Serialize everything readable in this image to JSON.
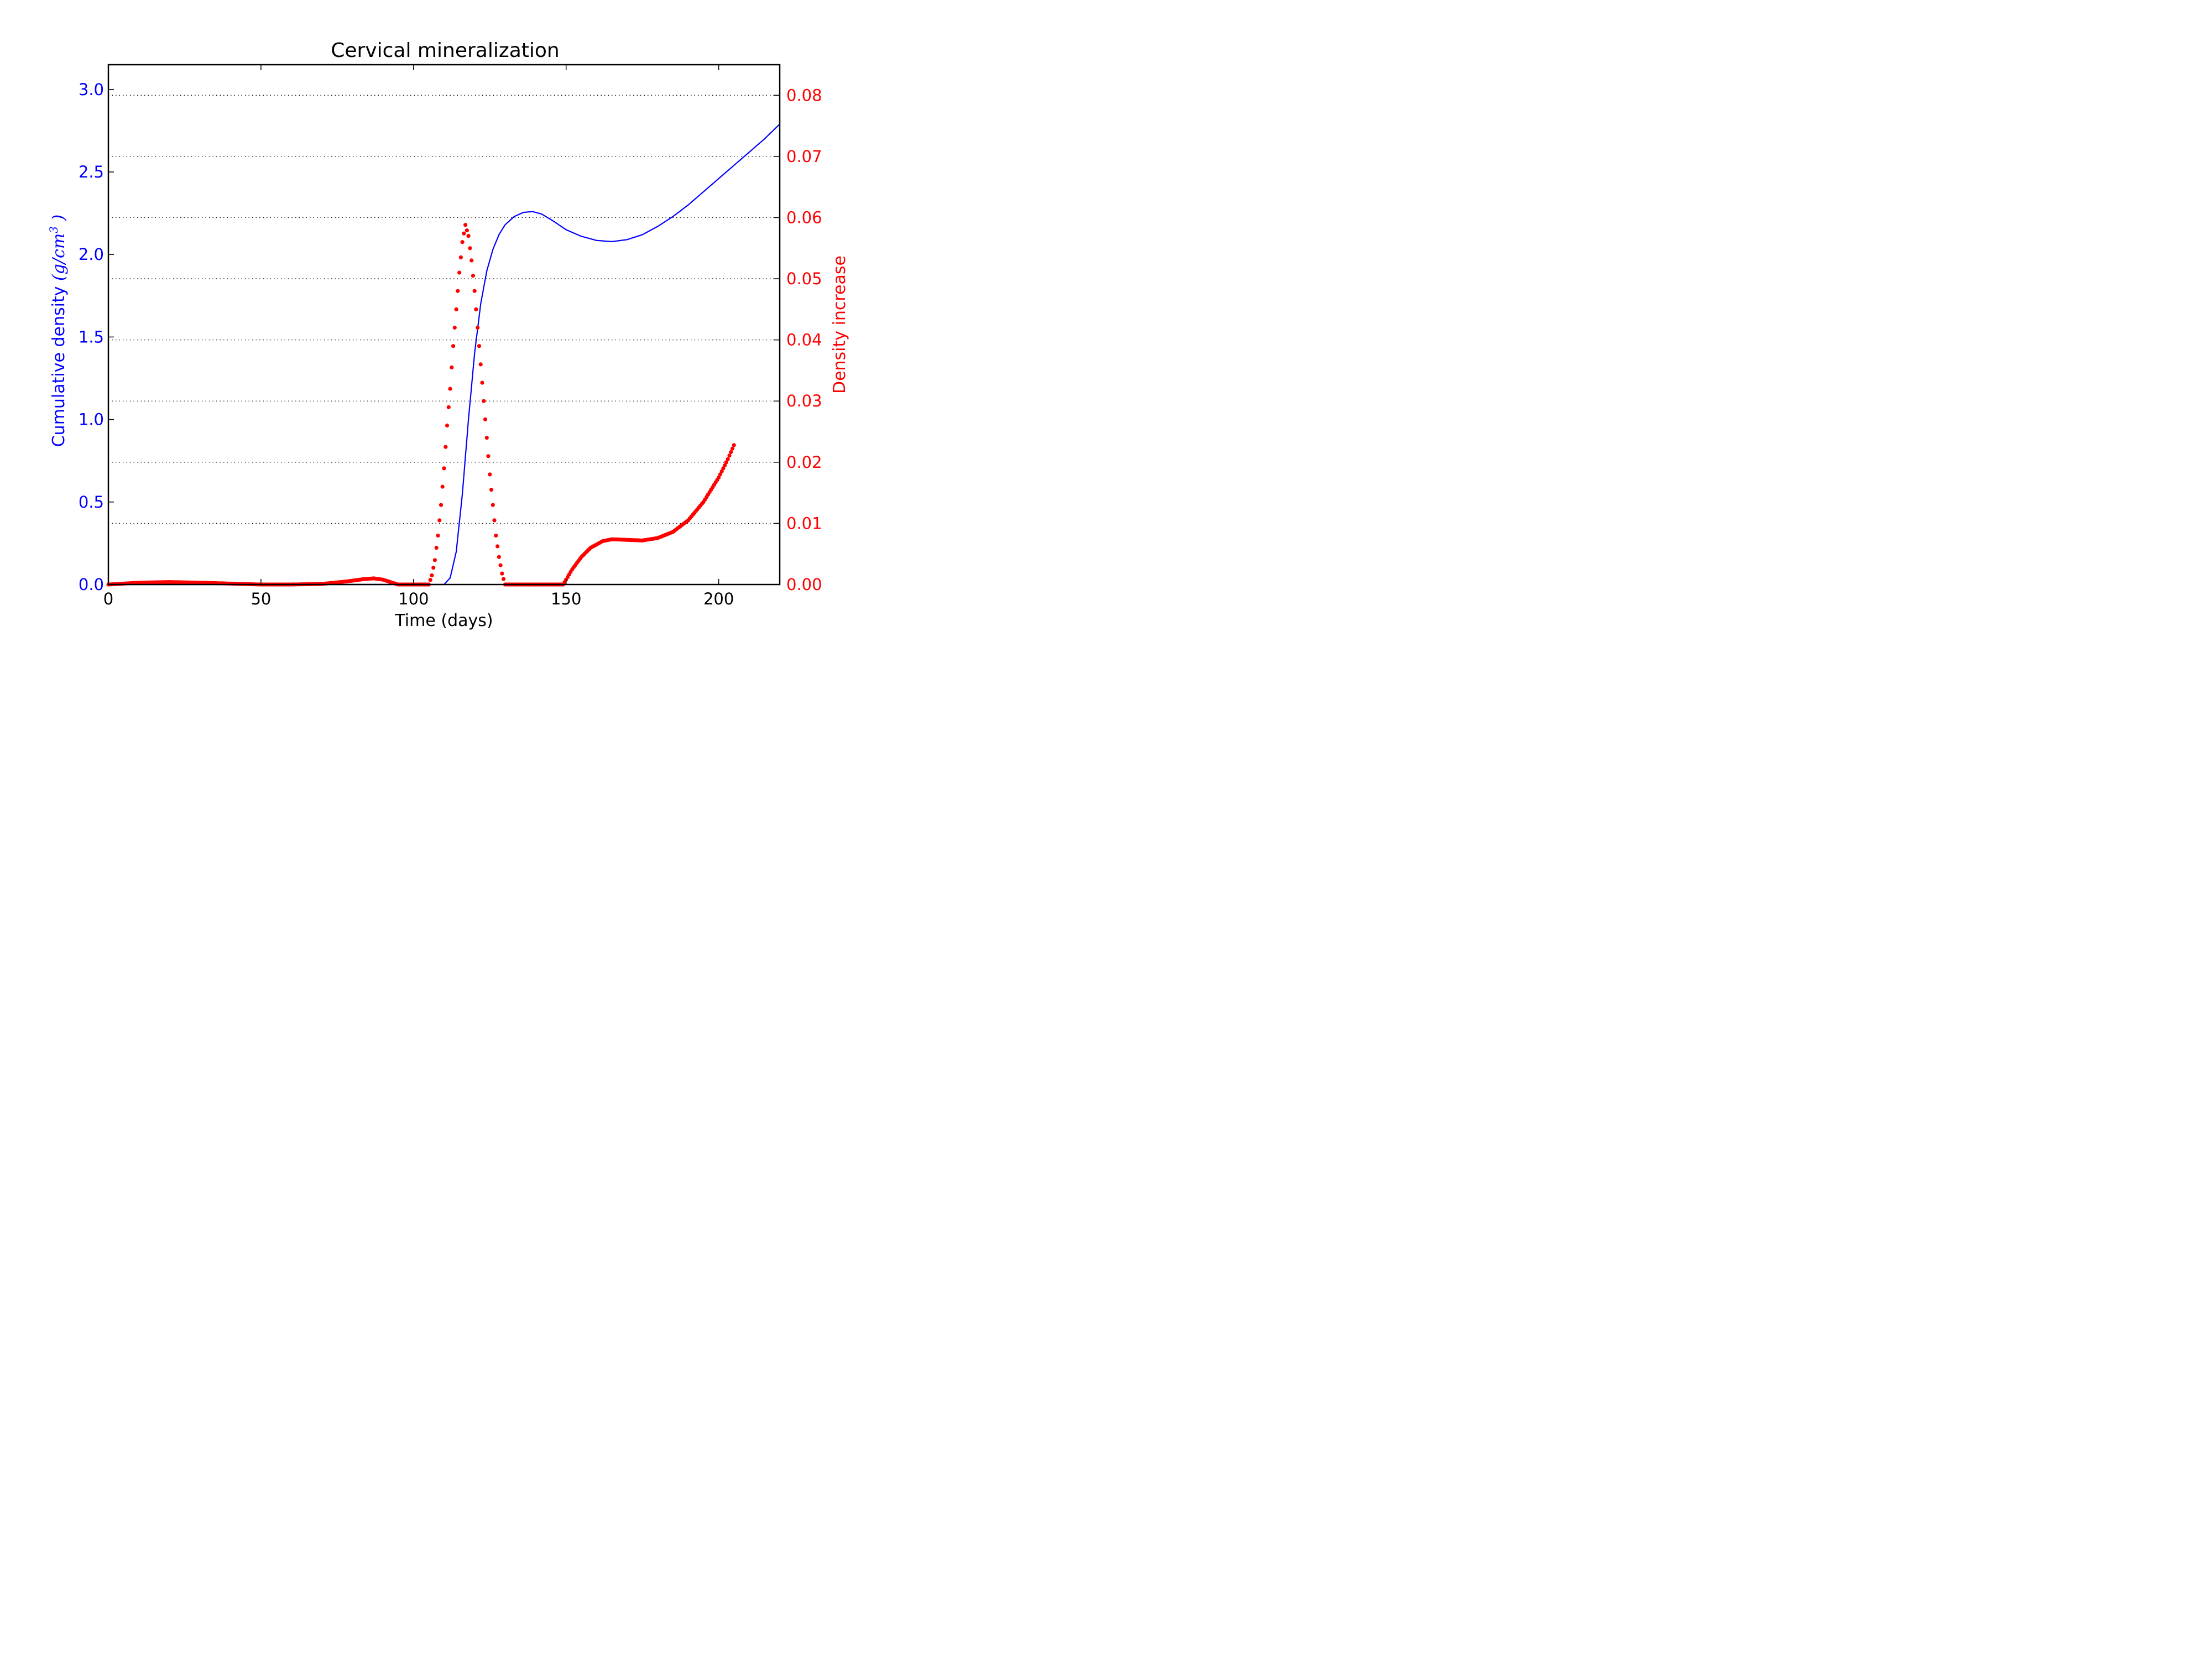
{
  "chart_data": {
    "type": "line",
    "title": "Cervical mineralization",
    "xlabel": "Time (days)",
    "xlim": [
      0,
      220
    ],
    "x_ticks": [
      0,
      50,
      100,
      150,
      200
    ],
    "y_left": {
      "label_text": "Cumulative density ",
      "label_units": "(g/cm",
      "label_exp": "3",
      "label_close": " )",
      "lim": [
        0,
        3.15
      ],
      "ticks": [
        0.0,
        0.5,
        1.0,
        1.5,
        2.0,
        2.5,
        3.0
      ],
      "color": "#0000ff"
    },
    "y_right": {
      "label": "Density increase",
      "lim": [
        0,
        0.085
      ],
      "ticks": [
        0.0,
        0.01,
        0.02,
        0.03,
        0.04,
        0.05,
        0.06,
        0.07,
        0.08
      ],
      "color": "#ff0000"
    },
    "grid": "right-axis horizontal dotted",
    "series": [
      {
        "axis": "left",
        "style": "line",
        "color": "#0000ff",
        "points": [
          [
            0,
            0
          ],
          [
            105,
            0
          ],
          [
            110,
            0
          ],
          [
            112,
            0.04
          ],
          [
            114,
            0.2
          ],
          [
            116,
            0.55
          ],
          [
            118,
            1.0
          ],
          [
            120,
            1.4
          ],
          [
            122,
            1.7
          ],
          [
            124,
            1.9
          ],
          [
            126,
            2.03
          ],
          [
            128,
            2.12
          ],
          [
            130,
            2.18
          ],
          [
            133,
            2.23
          ],
          [
            136,
            2.255
          ],
          [
            139,
            2.26
          ],
          [
            142,
            2.245
          ],
          [
            146,
            2.2
          ],
          [
            150,
            2.15
          ],
          [
            155,
            2.11
          ],
          [
            160,
            2.085
          ],
          [
            165,
            2.078
          ],
          [
            170,
            2.09
          ],
          [
            175,
            2.12
          ],
          [
            180,
            2.17
          ],
          [
            185,
            2.23
          ],
          [
            190,
            2.3
          ],
          [
            195,
            2.38
          ],
          [
            200,
            2.46
          ],
          [
            205,
            2.54
          ],
          [
            210,
            2.62
          ],
          [
            215,
            2.7
          ],
          [
            220,
            2.79
          ]
        ]
      },
      {
        "axis": "right",
        "style": "dots",
        "color": "#ff0000",
        "points": [
          [
            0,
            0
          ],
          [
            10,
            0.0003
          ],
          [
            20,
            0.0004
          ],
          [
            30,
            0.0003
          ],
          [
            40,
            0.00015
          ],
          [
            50,
            0.0
          ],
          [
            60,
            0.0
          ],
          [
            70,
            0.0001
          ],
          [
            78,
            0.0005
          ],
          [
            84,
            0.0009
          ],
          [
            87,
            0.001
          ],
          [
            90,
            0.0008
          ],
          [
            93,
            0.0003
          ],
          [
            95,
            0.0
          ],
          [
            105,
            0.0
          ],
          [
            106,
            0.0015
          ],
          [
            107,
            0.004
          ],
          [
            108,
            0.008
          ],
          [
            109,
            0.013
          ],
          [
            110,
            0.019
          ],
          [
            111,
            0.026
          ],
          [
            112,
            0.032
          ],
          [
            113,
            0.039
          ],
          [
            114,
            0.045
          ],
          [
            115,
            0.051
          ],
          [
            116,
            0.056
          ],
          [
            117,
            0.0588
          ],
          [
            118,
            0.057
          ],
          [
            119,
            0.053
          ],
          [
            120,
            0.048
          ],
          [
            121,
            0.042
          ],
          [
            122,
            0.036
          ],
          [
            123,
            0.03
          ],
          [
            124,
            0.024
          ],
          [
            125,
            0.018
          ],
          [
            126,
            0.013
          ],
          [
            127,
            0.008
          ],
          [
            128,
            0.0045
          ],
          [
            129,
            0.0018
          ],
          [
            130,
            0.0
          ],
          [
            149,
            0.0
          ],
          [
            150,
            0.0008
          ],
          [
            152,
            0.0025
          ],
          [
            155,
            0.0045
          ],
          [
            158,
            0.006
          ],
          [
            162,
            0.0071
          ],
          [
            165,
            0.0074
          ],
          [
            170,
            0.0073
          ],
          [
            175,
            0.0072
          ],
          [
            180,
            0.0076
          ],
          [
            185,
            0.0086
          ],
          [
            190,
            0.0105
          ],
          [
            195,
            0.0135
          ],
          [
            200,
            0.0175
          ],
          [
            203,
            0.0205
          ],
          [
            205,
            0.0228
          ]
        ]
      }
    ]
  }
}
